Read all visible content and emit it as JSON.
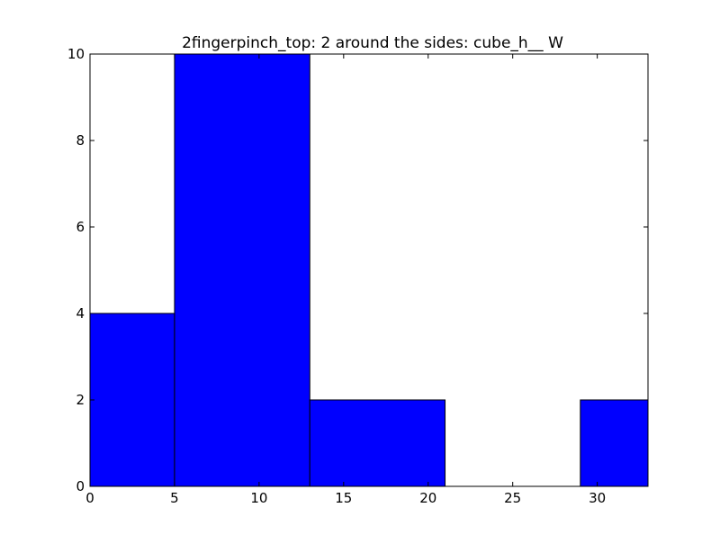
{
  "chart_data": {
    "type": "bar",
    "title": "2fingerpinch_top: 2 around the sides: cube_h__ W",
    "xlabel": "",
    "ylabel": "",
    "xlim": [
      0,
      33
    ],
    "ylim": [
      0,
      10
    ],
    "x_ticks": [
      0,
      5,
      10,
      15,
      20,
      25,
      30
    ],
    "y_ticks": [
      0,
      2,
      4,
      6,
      8,
      10
    ],
    "bins": [
      {
        "x0": 0,
        "x1": 5,
        "value": 4
      },
      {
        "x0": 5,
        "x1": 13,
        "value": 10
      },
      {
        "x0": 13,
        "x1": 21,
        "value": 2
      },
      {
        "x0": 21,
        "x1": 29,
        "value": 0
      },
      {
        "x0": 29,
        "x1": 33,
        "value": 2
      }
    ],
    "bar_color": "#0000ff",
    "edge_color": "#000000",
    "grid": false
  }
}
